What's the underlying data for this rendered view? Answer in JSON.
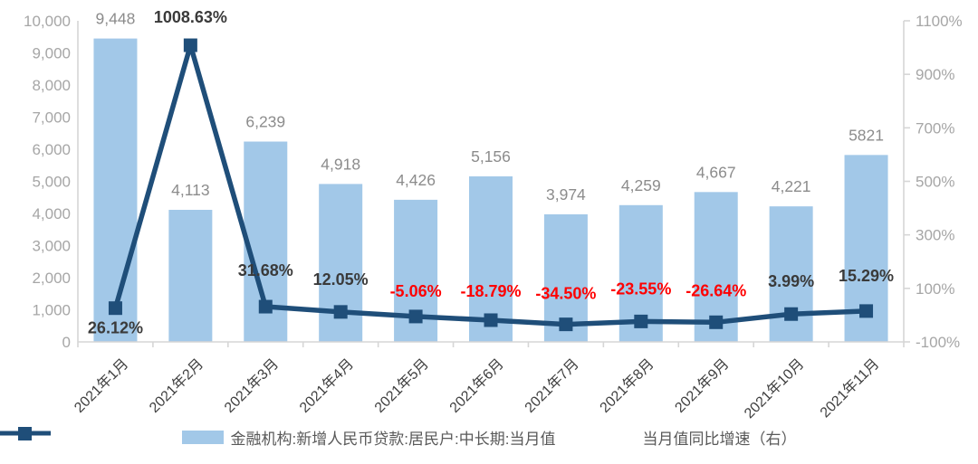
{
  "legend": {
    "bar_label": "金融机构:新增人民币贷款:居民户:中长期:当月值",
    "line_label": "当月值同比增速（右）"
  },
  "chart_data": {
    "type": "bar",
    "subtype": "combo bar + line, dual y-axis",
    "title": "",
    "categories": [
      "2021年1月",
      "2021年2月",
      "2021年3月",
      "2021年4月",
      "2021年5月",
      "2021年6月",
      "2021年7月",
      "2021年8月",
      "2021年9月",
      "2021年10月",
      "2021年11月"
    ],
    "series": [
      {
        "name": "金融机构:新增人民币贷款:居民户:中长期:当月值",
        "type": "bar",
        "axis": "left",
        "values": [
          9448,
          4113,
          6239,
          4918,
          4426,
          5156,
          3974,
          4259,
          4667,
          4221,
          5821
        ],
        "data_labels": [
          "9,448",
          "4,113",
          "6,239",
          "4,918",
          "4,426",
          "5,156",
          "3,974",
          "4,259",
          "4,667",
          "4,221",
          "5821"
        ]
      },
      {
        "name": "当月值同比增速（右）",
        "type": "line",
        "axis": "right",
        "marker": "square",
        "values": [
          26.12,
          1008.63,
          31.68,
          12.05,
          -5.06,
          -18.79,
          -34.5,
          -23.55,
          -26.64,
          3.99,
          15.29
        ],
        "data_labels": [
          "26.12%",
          "1008.63%",
          "31.68%",
          "12.05%",
          "-5.06%",
          "-18.79%",
          "-34.50%",
          "-23.55%",
          "-26.64%",
          "3.99%",
          "15.29%"
        ]
      }
    ],
    "left_axis": {
      "min": 0,
      "max": 10000,
      "step": 1000,
      "tick_labels": [
        "0",
        "1,000",
        "2,000",
        "3,000",
        "4,000",
        "5,000",
        "6,000",
        "7,000",
        "8,000",
        "9,000",
        "10,000"
      ]
    },
    "right_axis": {
      "min": -100,
      "max": 1100,
      "step": 200,
      "tick_labels": [
        "-100%",
        "100%",
        "300%",
        "500%",
        "700%",
        "900%",
        "1100%"
      ]
    },
    "grid": false,
    "legend_position": "bottom",
    "colors": {
      "bar": "#A2C8E8",
      "line": "#1F4E79",
      "positive_label": "#3A3A3A",
      "negative_label": "#FF0000",
      "bar_value_label": "#8C8C8C",
      "axis_text": "#A6A6A6",
      "axis_line": "#D6D6D6",
      "x_label": "#3F3F3F",
      "legend_text": "#595959"
    }
  }
}
